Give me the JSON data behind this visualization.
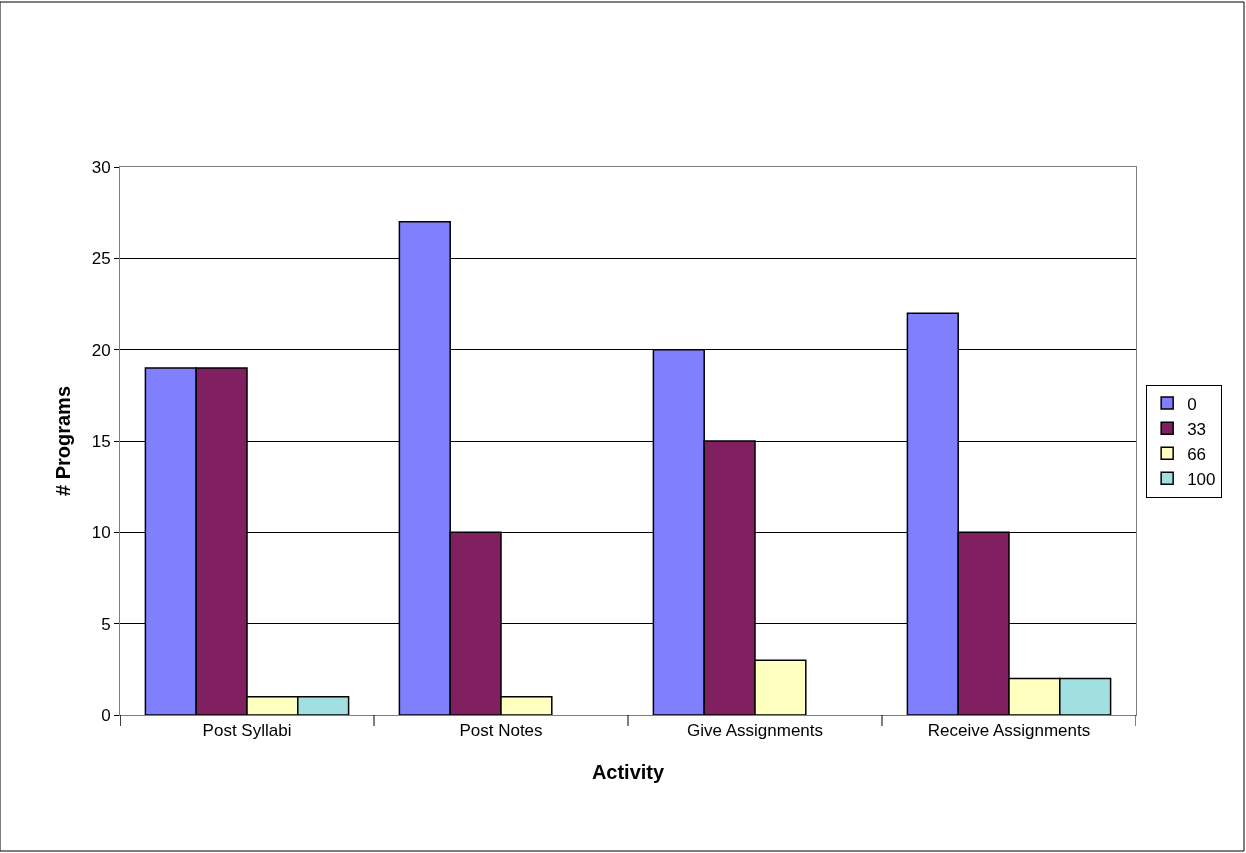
{
  "chart_data": {
    "type": "bar",
    "xlabel": "Activity",
    "ylabel": "# Programs",
    "categories": [
      "Post Syllabi",
      "Post Notes",
      "Give Assignments",
      "Receive Assignments"
    ],
    "series": [
      {
        "name": "0",
        "color": "#8080ff",
        "values": [
          19,
          27,
          20,
          22
        ]
      },
      {
        "name": "33",
        "color": "#802060",
        "values": [
          19,
          10,
          15,
          10
        ]
      },
      {
        "name": "66",
        "color": "#ffffc0",
        "values": [
          1,
          1,
          3,
          2
        ]
      },
      {
        "name": "100",
        "color": "#a0e0e0",
        "values": [
          1,
          null,
          null,
          2
        ]
      }
    ],
    "ylim": [
      0,
      30
    ],
    "yticks": [
      0,
      5,
      10,
      15,
      20,
      25,
      30
    ],
    "grid": "y",
    "legend": "right"
  }
}
